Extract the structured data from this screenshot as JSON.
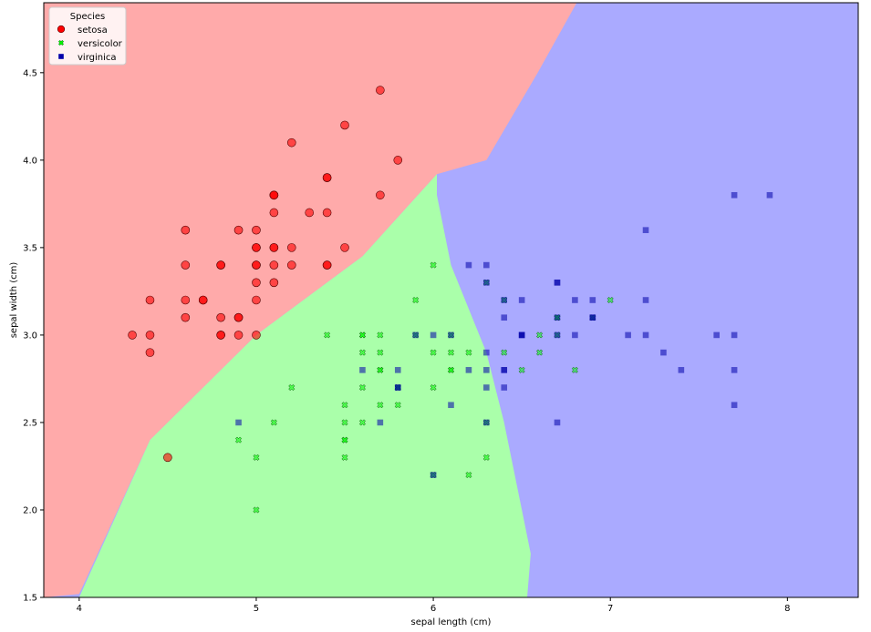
{
  "chart_data": {
    "type": "scatter",
    "title": "",
    "xlabel": "sepal length (cm)",
    "ylabel": "sepal width (cm)",
    "xlim": [
      3.8,
      8.4
    ],
    "ylim": [
      1.5,
      4.9
    ],
    "xticks": [
      4,
      5,
      6,
      7,
      8
    ],
    "yticks": [
      1.5,
      2.0,
      2.5,
      3.0,
      3.5,
      4.0,
      4.5
    ],
    "grid": false,
    "legend": {
      "title": "Species",
      "placement": "top-left",
      "entries": [
        {
          "label": "setosa",
          "color": "#ff0000",
          "marker": "circle"
        },
        {
          "label": "versicolor",
          "color": "#00ff00",
          "marker": "x"
        },
        {
          "label": "virginica",
          "color": "#0000aa",
          "marker": "square"
        }
      ]
    },
    "regions": [
      {
        "name": "setosa",
        "color": "#ffaaaa"
      },
      {
        "name": "versicolor",
        "color": "#aaffaa"
      },
      {
        "name": "virginica",
        "color": "#aaaaff"
      }
    ],
    "series": [
      {
        "name": "setosa",
        "color": "#ff0000",
        "marker": "circle",
        "points": [
          [
            5.1,
            3.5
          ],
          [
            4.9,
            3.0
          ],
          [
            4.7,
            3.2
          ],
          [
            4.6,
            3.1
          ],
          [
            5.0,
            3.6
          ],
          [
            5.4,
            3.9
          ],
          [
            4.6,
            3.4
          ],
          [
            5.0,
            3.4
          ],
          [
            4.4,
            2.9
          ],
          [
            4.9,
            3.1
          ],
          [
            5.4,
            3.7
          ],
          [
            4.8,
            3.4
          ],
          [
            4.8,
            3.0
          ],
          [
            4.3,
            3.0
          ],
          [
            5.8,
            4.0
          ],
          [
            5.7,
            4.4
          ],
          [
            5.4,
            3.9
          ],
          [
            5.1,
            3.5
          ],
          [
            5.7,
            3.8
          ],
          [
            5.1,
            3.8
          ],
          [
            5.4,
            3.4
          ],
          [
            5.1,
            3.7
          ],
          [
            4.6,
            3.6
          ],
          [
            5.1,
            3.3
          ],
          [
            4.8,
            3.4
          ],
          [
            5.0,
            3.0
          ],
          [
            5.0,
            3.4
          ],
          [
            5.2,
            3.5
          ],
          [
            5.2,
            3.4
          ],
          [
            4.7,
            3.2
          ],
          [
            4.8,
            3.1
          ],
          [
            5.4,
            3.4
          ],
          [
            5.2,
            4.1
          ],
          [
            5.5,
            4.2
          ],
          [
            4.9,
            3.1
          ],
          [
            5.0,
            3.2
          ],
          [
            5.5,
            3.5
          ],
          [
            4.9,
            3.6
          ],
          [
            4.4,
            3.0
          ],
          [
            5.1,
            3.4
          ],
          [
            5.0,
            3.5
          ],
          [
            4.5,
            2.3
          ],
          [
            4.4,
            3.2
          ],
          [
            5.0,
            3.5
          ],
          [
            5.1,
            3.8
          ],
          [
            4.8,
            3.0
          ],
          [
            5.1,
            3.8
          ],
          [
            4.6,
            3.2
          ],
          [
            5.3,
            3.7
          ],
          [
            5.0,
            3.3
          ]
        ]
      },
      {
        "name": "versicolor",
        "color": "#00ff00",
        "marker": "x",
        "points": [
          [
            7.0,
            3.2
          ],
          [
            6.4,
            3.2
          ],
          [
            6.9,
            3.1
          ],
          [
            5.5,
            2.3
          ],
          [
            6.5,
            2.8
          ],
          [
            5.7,
            2.8
          ],
          [
            6.3,
            3.3
          ],
          [
            4.9,
            2.4
          ],
          [
            6.6,
            2.9
          ],
          [
            5.2,
            2.7
          ],
          [
            5.0,
            2.0
          ],
          [
            5.9,
            3.0
          ],
          [
            6.0,
            2.2
          ],
          [
            6.1,
            2.9
          ],
          [
            5.6,
            2.9
          ],
          [
            6.7,
            3.1
          ],
          [
            5.6,
            3.0
          ],
          [
            5.8,
            2.7
          ],
          [
            6.2,
            2.2
          ],
          [
            5.6,
            2.5
          ],
          [
            5.9,
            3.2
          ],
          [
            6.1,
            2.8
          ],
          [
            6.3,
            2.5
          ],
          [
            6.1,
            2.8
          ],
          [
            6.4,
            2.9
          ],
          [
            6.6,
            3.0
          ],
          [
            6.8,
            2.8
          ],
          [
            6.7,
            3.0
          ],
          [
            6.0,
            2.9
          ],
          [
            5.7,
            2.6
          ],
          [
            5.5,
            2.4
          ],
          [
            5.5,
            2.4
          ],
          [
            5.8,
            2.7
          ],
          [
            6.0,
            2.7
          ],
          [
            5.4,
            3.0
          ],
          [
            6.0,
            3.4
          ],
          [
            6.7,
            3.1
          ],
          [
            6.3,
            2.3
          ],
          [
            5.6,
            3.0
          ],
          [
            5.5,
            2.5
          ],
          [
            5.5,
            2.6
          ],
          [
            6.1,
            3.0
          ],
          [
            5.8,
            2.6
          ],
          [
            5.0,
            2.3
          ],
          [
            5.6,
            2.7
          ],
          [
            5.7,
            3.0
          ],
          [
            5.7,
            2.9
          ],
          [
            6.2,
            2.9
          ],
          [
            5.1,
            2.5
          ],
          [
            5.7,
            2.8
          ]
        ]
      },
      {
        "name": "virginica",
        "color": "#0000aa",
        "marker": "square",
        "points": [
          [
            6.3,
            3.3
          ],
          [
            5.8,
            2.7
          ],
          [
            7.1,
            3.0
          ],
          [
            6.3,
            2.9
          ],
          [
            6.5,
            3.0
          ],
          [
            7.6,
            3.0
          ],
          [
            4.9,
            2.5
          ],
          [
            7.3,
            2.9
          ],
          [
            6.7,
            2.5
          ],
          [
            7.2,
            3.6
          ],
          [
            6.5,
            3.2
          ],
          [
            6.4,
            2.7
          ],
          [
            6.8,
            3.0
          ],
          [
            5.7,
            2.5
          ],
          [
            5.8,
            2.8
          ],
          [
            6.4,
            3.2
          ],
          [
            6.5,
            3.0
          ],
          [
            7.7,
            3.8
          ],
          [
            7.7,
            2.6
          ],
          [
            6.0,
            2.2
          ],
          [
            6.9,
            3.2
          ],
          [
            5.6,
            2.8
          ],
          [
            7.7,
            2.8
          ],
          [
            6.3,
            2.7
          ],
          [
            6.7,
            3.3
          ],
          [
            7.2,
            3.2
          ],
          [
            6.2,
            2.8
          ],
          [
            6.1,
            3.0
          ],
          [
            6.4,
            2.8
          ],
          [
            7.2,
            3.0
          ],
          [
            7.4,
            2.8
          ],
          [
            7.9,
            3.8
          ],
          [
            6.4,
            2.8
          ],
          [
            6.3,
            2.8
          ],
          [
            6.1,
            2.6
          ],
          [
            7.7,
            3.0
          ],
          [
            6.3,
            3.4
          ],
          [
            6.4,
            3.1
          ],
          [
            6.0,
            3.0
          ],
          [
            6.9,
            3.1
          ],
          [
            6.7,
            3.1
          ],
          [
            6.9,
            3.1
          ],
          [
            5.8,
            2.7
          ],
          [
            6.8,
            3.2
          ],
          [
            6.7,
            3.3
          ],
          [
            6.7,
            3.0
          ],
          [
            6.3,
            2.5
          ],
          [
            6.5,
            3.0
          ],
          [
            6.2,
            3.4
          ],
          [
            5.9,
            3.0
          ]
        ]
      }
    ]
  }
}
